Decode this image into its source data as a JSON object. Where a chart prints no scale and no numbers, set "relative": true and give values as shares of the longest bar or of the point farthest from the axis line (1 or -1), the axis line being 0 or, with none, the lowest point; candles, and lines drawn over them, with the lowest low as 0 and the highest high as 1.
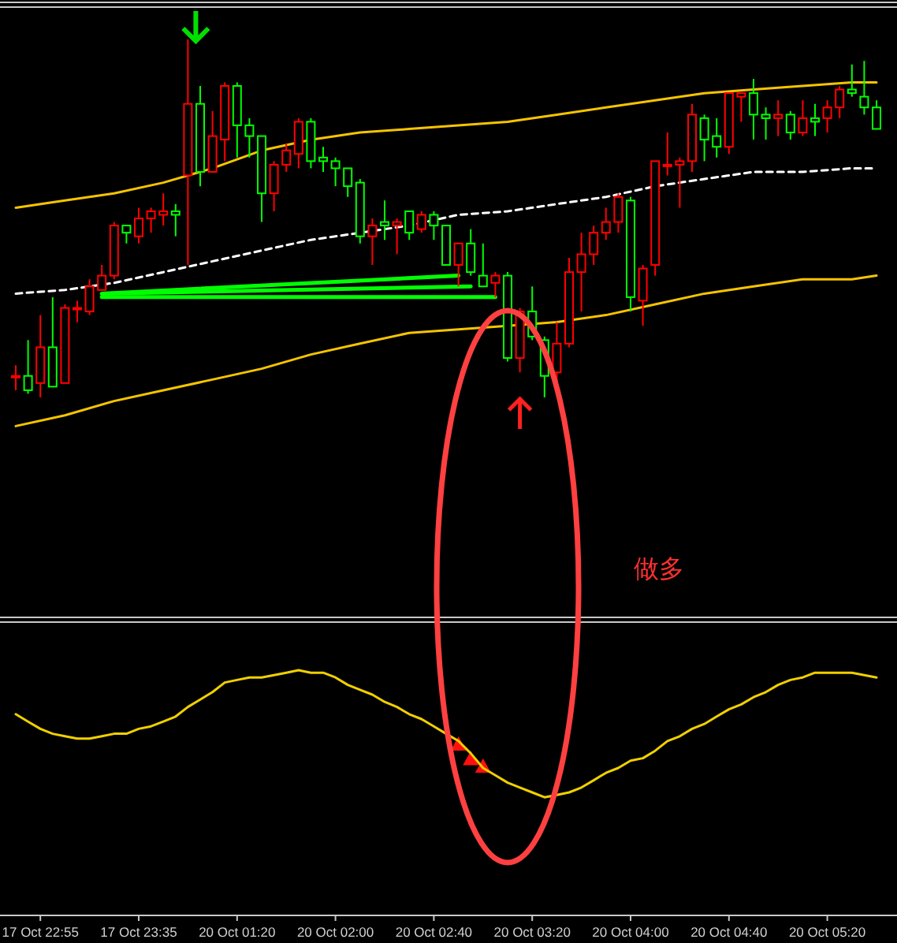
{
  "chart_data": [
    {
      "type": "candlestick",
      "relative": true,
      "tick_labels": false,
      "categories": [
        null,
        null,
        null,
        null,
        null,
        null,
        null,
        null,
        null,
        null,
        null,
        null,
        null,
        null,
        null,
        null,
        null,
        null,
        null,
        null,
        null,
        null,
        null,
        null,
        null,
        null,
        null,
        null,
        null,
        null,
        null,
        null,
        null,
        null,
        null,
        null,
        null,
        null,
        null,
        null,
        null,
        null,
        null,
        null,
        null,
        null,
        null,
        null,
        null,
        null,
        null,
        null,
        null,
        null,
        null,
        null,
        null,
        null,
        null,
        null,
        null,
        null,
        null,
        null,
        null,
        null,
        null,
        null,
        null,
        null,
        null
      ],
      "ohlc": [
        [
          0.06,
          0.09,
          0.02,
          0.06
        ],
        [
          0.02,
          0.16,
          0.01,
          0.06
        ],
        [
          0.14,
          0.23,
          0,
          0.04
        ],
        [
          0.03,
          0.28,
          0.03,
          0.14
        ],
        [
          0.25,
          0.26,
          0.04,
          0.04
        ],
        [
          0.25,
          0.27,
          0.21,
          0.25
        ],
        [
          0.31,
          0.33,
          0.23,
          0.24
        ],
        [
          0.34,
          0.37,
          0.3,
          0.3
        ],
        [
          0.48,
          0.49,
          0.33,
          0.34
        ],
        [
          0.46,
          0.48,
          0.43,
          0.48
        ],
        [
          0.5,
          0.53,
          0.43,
          0.45
        ],
        [
          0.52,
          0.53,
          0.46,
          0.5
        ],
        [
          0.52,
          0.57,
          0.48,
          0.51
        ],
        [
          0.51,
          0.54,
          0.45,
          0.52
        ],
        [
          0.82,
          1,
          0.37,
          0.62
        ],
        [
          0.63,
          0.87,
          0.59,
          0.82
        ],
        [
          0.73,
          0.8,
          0.63,
          0.63
        ],
        [
          0.87,
          0.88,
          0.66,
          0.72
        ],
        [
          0.76,
          0.88,
          0.67,
          0.87
        ],
        [
          0.73,
          0.78,
          0.67,
          0.76
        ],
        [
          0.57,
          0.73,
          0.49,
          0.73
        ],
        [
          0.65,
          0.66,
          0.52,
          0.57
        ],
        [
          0.69,
          0.71,
          0.63,
          0.65
        ],
        [
          0.77,
          0.78,
          0.64,
          0.68
        ],
        [
          0.66,
          0.78,
          0.64,
          0.77
        ],
        [
          0.66,
          0.7,
          0.63,
          0.67
        ],
        [
          0.64,
          0.67,
          0.59,
          0.66
        ],
        [
          0.59,
          0.64,
          0.56,
          0.64
        ],
        [
          0.45,
          0.61,
          0.43,
          0.6
        ],
        [
          0.48,
          0.5,
          0.37,
          0.45
        ],
        [
          0.48,
          0.55,
          0.44,
          0.49
        ],
        [
          0.49,
          0.5,
          0.4,
          0.48
        ],
        [
          0.46,
          0.52,
          0.44,
          0.52
        ],
        [
          0.51,
          0.52,
          0.46,
          0.47
        ],
        [
          0.48,
          0.52,
          0.44,
          0.51
        ],
        [
          0.37,
          0.48,
          0.37,
          0.48
        ],
        [
          0.43,
          0.43,
          0.31,
          0.37
        ],
        [
          0.35,
          0.47,
          0.34,
          0.43
        ],
        [
          0.31,
          0.43,
          0.31,
          0.34
        ],
        [
          0.34,
          0.35,
          0.28,
          0.32
        ],
        [
          0.11,
          0.35,
          0.1,
          0.34
        ],
        [
          0.24,
          0.25,
          0.07,
          0.11
        ],
        [
          0.17,
          0.31,
          0.16,
          0.24
        ],
        [
          0.06,
          0.17,
          0,
          0.16
        ],
        [
          0.15,
          0.21,
          0.04,
          0.07
        ],
        [
          0.35,
          0.39,
          0.14,
          0.15
        ],
        [
          0.4,
          0.46,
          0.24,
          0.35
        ],
        [
          0.46,
          0.48,
          0.37,
          0.4
        ],
        [
          0.49,
          0.53,
          0.44,
          0.46
        ],
        [
          0.56,
          0.57,
          0.46,
          0.49
        ],
        [
          0.28,
          0.56,
          0.24,
          0.55
        ],
        [
          0.36,
          0.37,
          0.2,
          0.27
        ],
        [
          0.66,
          0.66,
          0.34,
          0.37
        ],
        [
          0.65,
          0.74,
          0.62,
          0.65
        ],
        [
          0.66,
          0.67,
          0.53,
          0.65
        ],
        [
          0.79,
          0.82,
          0.63,
          0.66
        ],
        [
          0.72,
          0.79,
          0.66,
          0.78
        ],
        [
          0.7,
          0.78,
          0.67,
          0.73
        ],
        [
          0.85,
          0.85,
          0.68,
          0.7
        ],
        [
          0.85,
          0.85,
          0.77,
          0.84
        ],
        [
          0.79,
          0.89,
          0.72,
          0.85
        ],
        [
          0.78,
          0.81,
          0.72,
          0.79
        ],
        [
          0.79,
          0.83,
          0.73,
          0.78
        ],
        [
          0.74,
          0.8,
          0.72,
          0.79
        ],
        [
          0.78,
          0.83,
          0.73,
          0.74
        ],
        [
          0.77,
          0.82,
          0.73,
          0.78
        ],
        [
          0.81,
          0.83,
          0.74,
          0.78
        ],
        [
          0.86,
          0.87,
          0.78,
          0.81
        ],
        [
          0.85,
          0.93,
          0.84,
          0.86
        ],
        [
          0.81,
          0.94,
          0.79,
          0.84
        ],
        [
          0.75,
          0.83,
          0.75,
          0.81
        ]
      ],
      "colors": [
        "#ff0000",
        "#00ff00",
        "#ff0000",
        "#00ff00",
        "#ff0000",
        "#ff0000",
        "#ff0000",
        "#ff0000",
        "#ff0000",
        "#00ff00",
        "#ff0000",
        "#ff0000",
        "#ff0000",
        "#00ff00",
        "#ff0000",
        "#00ff00",
        "#ff0000",
        "#ff0000",
        "#00ff00",
        "#00ff00",
        "#00ff00",
        "#ff0000",
        "#ff0000",
        "#ff0000",
        "#00ff00",
        "#00ff00",
        "#00ff00",
        "#00ff00",
        "#00ff00",
        "#ff0000",
        "#00ff00",
        "#ff0000",
        "#00ff00",
        "#ff0000",
        "#00ff00",
        "#00ff00",
        "#ff0000",
        "#00ff00",
        "#00ff00",
        "#ff0000",
        "#00ff00",
        "#ff0000",
        "#00ff00",
        "#00ff00",
        "#ff0000",
        "#ff0000",
        "#ff0000",
        "#ff0000",
        "#ff0000",
        "#ff0000",
        "#00ff00",
        "#ff0000",
        "#ff0000",
        "#ff0000",
        "#ff0000",
        "#ff0000",
        "#00ff00",
        "#00ff00",
        "#ff0000",
        "#ff0000",
        "#00ff00",
        "#00ff00",
        "#ff0000",
        "#00ff00",
        "#ff0000",
        "#00ff00",
        "#ff0000",
        "#ff0000",
        "#00ff00",
        "#00ff00",
        "#00ff00"
      ],
      "series": [
        {
          "type": "line",
          "color": "#f5c400",
          "line_style": "solid",
          "values": [
            0.53,
            null,
            null,
            null,
            0.55,
            null,
            null,
            null,
            0.57,
            null,
            null,
            null,
            0.6,
            null,
            null,
            null,
            0.64,
            null,
            null,
            null,
            0.69,
            null,
            null,
            null,
            0.72,
            null,
            null,
            null,
            0.74,
            null,
            null,
            null,
            0.75,
            null,
            null,
            null,
            0.76,
            null,
            null,
            null,
            0.77,
            null,
            null,
            null,
            0.79,
            null,
            null,
            null,
            0.81,
            null,
            null,
            null,
            0.83,
            null,
            null,
            null,
            0.85,
            null,
            null,
            null,
            0.86,
            null,
            null,
            null,
            0.87,
            null,
            null,
            null,
            0.88,
            null,
            0.88
          ]
        },
        {
          "type": "line",
          "color": "#f5c400",
          "line_style": "solid",
          "values": [
            -0.08,
            null,
            null,
            null,
            -0.05,
            null,
            null,
            null,
            -0.01,
            null,
            null,
            null,
            0.02,
            null,
            null,
            null,
            0.05,
            null,
            null,
            null,
            0.08,
            null,
            null,
            null,
            0.12,
            null,
            null,
            null,
            0.15,
            null,
            null,
            null,
            0.18,
            null,
            null,
            null,
            0.19,
            null,
            null,
            null,
            0.2,
            null,
            null,
            null,
            0.21,
            null,
            null,
            null,
            0.23,
            null,
            null,
            null,
            0.26,
            null,
            null,
            null,
            0.29,
            null,
            null,
            null,
            0.31,
            null,
            null,
            null,
            0.33,
            null,
            null,
            null,
            0.33,
            null,
            0.34
          ]
        },
        {
          "type": "line",
          "color": "#ffffff",
          "line_style": "dashed",
          "values": [
            0.29,
            null,
            null,
            null,
            0.3,
            null,
            null,
            null,
            0.32,
            null,
            null,
            null,
            0.35,
            null,
            null,
            null,
            0.38,
            null,
            null,
            null,
            0.41,
            null,
            null,
            null,
            0.44,
            null,
            null,
            null,
            0.46,
            null,
            null,
            null,
            0.48,
            null,
            null,
            null,
            0.51,
            null,
            null,
            null,
            0.52,
            null,
            null,
            null,
            0.54,
            null,
            null,
            null,
            0.56,
            null,
            null,
            null,
            0.59,
            null,
            null,
            null,
            0.61,
            null,
            null,
            null,
            0.63,
            null,
            null,
            null,
            0.63,
            null,
            null,
            null,
            0.64,
            null,
            0.64
          ]
        },
        {
          "type": "line",
          "color": "#00ff00",
          "line_style": "solid",
          "values": [
            null,
            null,
            null,
            null,
            null,
            null,
            null,
            0.28,
            null,
            null,
            null,
            null,
            null,
            null,
            null,
            null,
            null,
            null,
            null,
            null,
            null,
            null,
            null,
            null,
            null,
            null,
            null,
            null,
            null,
            null,
            null,
            null,
            null,
            null,
            null,
            null,
            null,
            null,
            null,
            0.28,
            null,
            null,
            null,
            null,
            null,
            null,
            null,
            null,
            null,
            null,
            null,
            null,
            null,
            null,
            null,
            null,
            null,
            null,
            null,
            null,
            null,
            null,
            null,
            null,
            null,
            null,
            null,
            null,
            null,
            null,
            null
          ]
        },
        {
          "type": "line",
          "color": "#00ff00",
          "line_style": "solid",
          "values": [
            null,
            null,
            null,
            null,
            null,
            null,
            null,
            0.29,
            null,
            null,
            null,
            null,
            null,
            null,
            null,
            null,
            null,
            null,
            null,
            null,
            null,
            null,
            null,
            null,
            null,
            null,
            null,
            null,
            null,
            null,
            null,
            null,
            null,
            null,
            null,
            null,
            null,
            0.31,
            null,
            null,
            null,
            null,
            null,
            null,
            null,
            null,
            null,
            null,
            null,
            null,
            null,
            null,
            null,
            null,
            null,
            null,
            null,
            null,
            null,
            null,
            null,
            null,
            null,
            null,
            null,
            null,
            null,
            null,
            null,
            null,
            null
          ]
        },
        {
          "type": "line",
          "color": "#00ff00",
          "line_style": "solid",
          "values": [
            null,
            null,
            null,
            null,
            null,
            null,
            null,
            0.29,
            null,
            null,
            null,
            null,
            null,
            null,
            null,
            null,
            null,
            null,
            null,
            null,
            null,
            null,
            null,
            null,
            null,
            null,
            null,
            null,
            null,
            null,
            null,
            null,
            null,
            null,
            null,
            null,
            0.34,
            null,
            null,
            null,
            null,
            null,
            null,
            null,
            null,
            null,
            null,
            null,
            null,
            null,
            null,
            null,
            null,
            null,
            null,
            null,
            null,
            null,
            null,
            null,
            null,
            null,
            null,
            null,
            null,
            null,
            null,
            null,
            null,
            null,
            null
          ]
        }
      ],
      "annotations": [
        "做多"
      ]
    },
    {
      "type": "line",
      "relative": true,
      "tick_labels": "x",
      "categories": [
        null,
        null,
        "17 Oct 22:55",
        null,
        null,
        null,
        null,
        null,
        null,
        null,
        "17 Oct 23:35",
        null,
        null,
        null,
        null,
        null,
        null,
        null,
        "20 Oct 01:20",
        null,
        null,
        null,
        null,
        null,
        null,
        null,
        "20 Oct 02:00",
        null,
        null,
        null,
        null,
        null,
        null,
        null,
        "20 Oct 02:40",
        null,
        null,
        null,
        null,
        null,
        null,
        null,
        "20 Oct 03:20",
        null,
        null,
        null,
        null,
        null,
        null,
        null,
        "20 Oct 04:00",
        null,
        null,
        null,
        null,
        null,
        null,
        null,
        "20 Oct 04:40",
        null,
        null,
        null,
        null,
        null,
        null,
        null,
        "20 Oct 05:20",
        null,
        null,
        null,
        null
      ],
      "series": [
        {
          "type": "scatter",
          "color": "#ff1010",
          "marker": "triangle",
          "values": [
            null,
            null,
            null,
            null,
            null,
            null,
            null,
            null,
            null,
            null,
            null,
            null,
            null,
            null,
            null,
            null,
            null,
            null,
            null,
            null,
            null,
            null,
            null,
            null,
            null,
            null,
            null,
            null,
            null,
            null,
            null,
            null,
            null,
            null,
            null,
            null,
            0.7,
            0.64,
            0.61,
            null,
            null,
            null,
            null,
            null,
            null,
            null,
            null,
            null,
            null,
            null,
            null,
            null,
            null,
            null,
            null,
            null,
            null,
            null,
            null,
            null,
            null,
            null,
            null,
            null,
            null,
            null,
            null,
            null,
            null,
            null,
            null
          ]
        },
        {
          "color": "#f0d000",
          "values": [
            0.82,
            0.79,
            0.76,
            0.74,
            0.73,
            0.72,
            0.72,
            0.73,
            0.74,
            0.74,
            0.76,
            0.77,
            0.79,
            0.81,
            0.85,
            0.88,
            0.91,
            0.95,
            0.96,
            0.97,
            0.97,
            0.98,
            0.99,
            1,
            0.99,
            0.99,
            0.97,
            0.94,
            0.92,
            0.9,
            0.87,
            0.85,
            0.82,
            0.8,
            0.77,
            0.74,
            0.71,
            0.66,
            0.6,
            0.57,
            0.54,
            0.52,
            0.5,
            0.48,
            0.49,
            0.5,
            0.52,
            0.55,
            0.58,
            0.6,
            0.63,
            0.64,
            0.67,
            0.71,
            0.73,
            0.76,
            0.78,
            0.81,
            0.84,
            0.86,
            0.89,
            0.91,
            0.94,
            0.96,
            0.97,
            0.99,
            0.99,
            0.99,
            0.99,
            0.98,
            0.97
          ]
        }
      ]
    }
  ]
}
